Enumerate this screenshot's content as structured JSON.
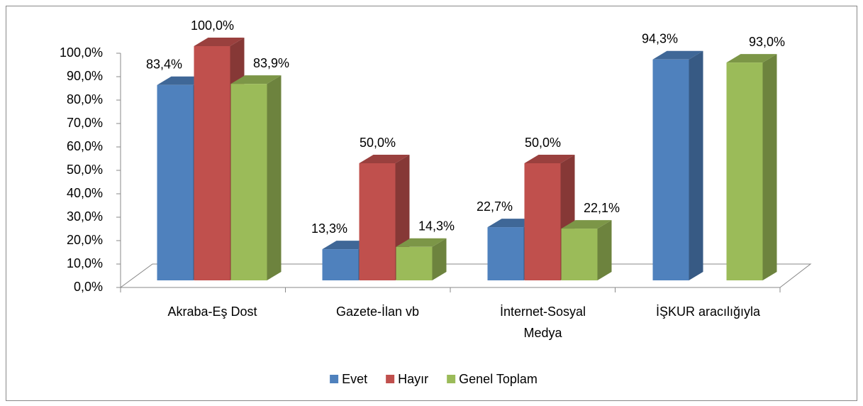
{
  "chart_data": {
    "type": "bar3d",
    "categories": [
      "Akraba-Eş Dost",
      "Gazete-İlan vb",
      "İnternet-Sosyal Medya",
      "İŞKUR aracılığıyla"
    ],
    "series": [
      {
        "name": "Evet",
        "color": "#4f81bd",
        "values": [
          83.4,
          13.3,
          22.7,
          94.3
        ],
        "value_labels": [
          "83,4%",
          "13,3%",
          "22,7%",
          "94,3%"
        ]
      },
      {
        "name": "Hayır",
        "color": "#c0504d",
        "values": [
          100.0,
          50.0,
          50.0,
          null
        ],
        "value_labels": [
          "100,0%",
          "50,0%",
          "50,0%",
          null
        ]
      },
      {
        "name": "Genel Toplam",
        "color": "#9bbb59",
        "values": [
          83.9,
          14.3,
          22.1,
          93.0
        ],
        "value_labels": [
          "83,9%",
          "14,3%",
          "22,1%",
          "93,0%"
        ]
      }
    ],
    "ylim": [
      0,
      100
    ],
    "yticks": [
      {
        "value": 0,
        "label": "0,0%"
      },
      {
        "value": 10,
        "label": "10,0%"
      },
      {
        "value": 20,
        "label": "20,0%"
      },
      {
        "value": 30,
        "label": "30,0%"
      },
      {
        "value": 40,
        "label": "40,0%"
      },
      {
        "value": 50,
        "label": "50,0%"
      },
      {
        "value": 60,
        "label": "60,0%"
      },
      {
        "value": 70,
        "label": "70,0%"
      },
      {
        "value": 80,
        "label": "80,0%"
      },
      {
        "value": 90,
        "label": "90,0%"
      },
      {
        "value": 100,
        "label": "100,0%"
      }
    ],
    "legend": "bottom"
  }
}
